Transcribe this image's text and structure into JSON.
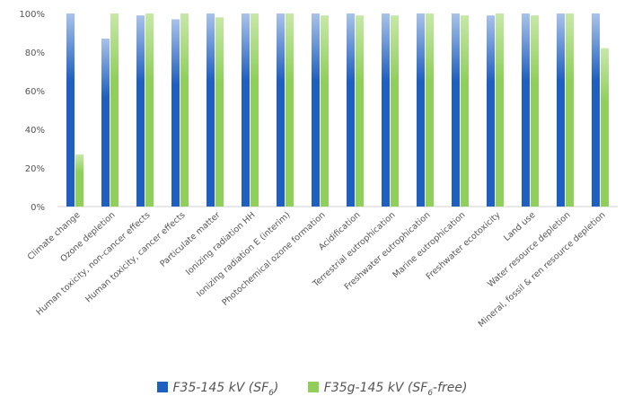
{
  "chart_data": {
    "type": "bar",
    "categories": [
      "Climate change",
      "Ozone depletion",
      "Human toxicity, non-cancer effects",
      "Human toxicity, cancer effects",
      "Particulate matter",
      "Ionizing radiation HH",
      "Ionizing radiation E (interim)",
      "Photochemical ozone formation",
      "Acidification",
      "Terrestrial eutrophication",
      "Freshwater eutrophication",
      "Marine eutrophication",
      "Freshwater ecotoxicity",
      "Land use",
      "Water resource depletion",
      "Mineral, fossil & ren resource depletion"
    ],
    "series": [
      {
        "name": "F35-145 kV (SF6)",
        "legend_main": "F35-145 kV (SF",
        "legend_sub": "6",
        "legend_tail": ")",
        "color": "#1f5fbf",
        "values": [
          100,
          87,
          99,
          97,
          100,
          100,
          100,
          100,
          100,
          100,
          100,
          100,
          99,
          100,
          100,
          100
        ]
      },
      {
        "name": "F35g-145 kV (SF6-free)",
        "legend_main": "F35g-145 kV (SF",
        "legend_sub": "6",
        "legend_tail": "-free)",
        "color": "#8fcf5a",
        "values": [
          27,
          100,
          100,
          100,
          98,
          100,
          100,
          99,
          99,
          99,
          100,
          99,
          100,
          99,
          100,
          82
        ]
      }
    ],
    "yticks": [
      "0%",
      "20%",
      "40%",
      "60%",
      "80%",
      "100%"
    ],
    "ylim": [
      0,
      100
    ],
    "legend_position": "bottom",
    "grid": false
  }
}
